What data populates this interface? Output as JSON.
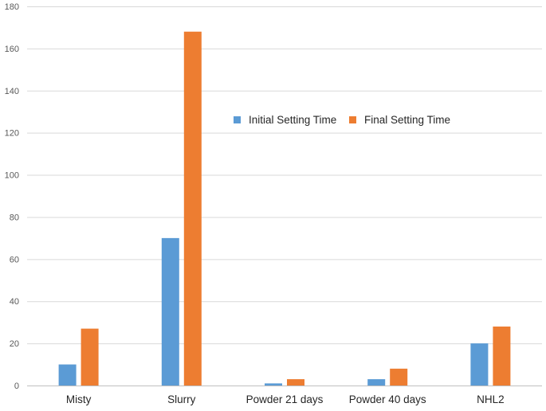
{
  "chart_data": {
    "type": "bar",
    "title": "",
    "xlabel": "",
    "ylabel": "",
    "categories": [
      "Misty",
      "Slurry",
      "Powder 21 days",
      "Powder 40 days",
      "NHL2"
    ],
    "series": [
      {
        "name": "Initial Setting Time",
        "values": [
          10,
          70,
          1,
          3,
          20
        ],
        "color": "#5b9bd5"
      },
      {
        "name": "Final Setting Time",
        "values": [
          27,
          168,
          3,
          8,
          28
        ],
        "color": "#ed7d31"
      }
    ],
    "ylim": [
      0,
      180
    ],
    "yticks": [
      0,
      20,
      40,
      60,
      80,
      100,
      120,
      140,
      160,
      180
    ],
    "grid": true,
    "legend_position": "upper-center-right"
  }
}
